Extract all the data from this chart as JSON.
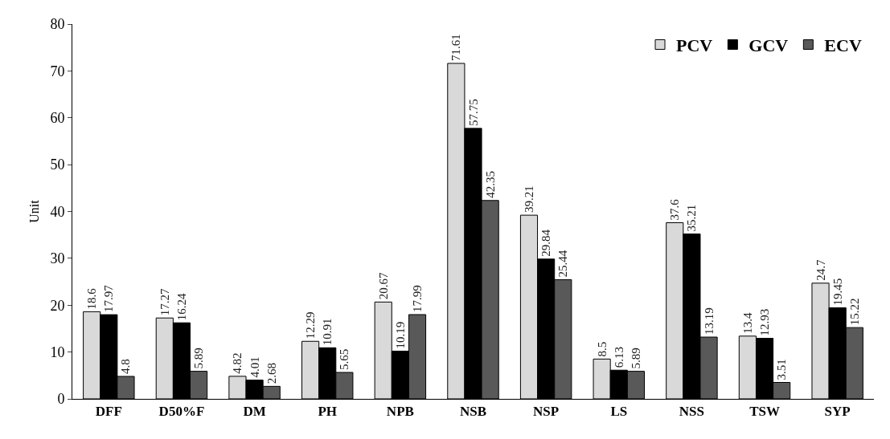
{
  "chart_data": {
    "type": "bar",
    "ylabel": "Unit",
    "categories": [
      "DFF",
      "D50%F",
      "DM",
      "PH",
      "NPB",
      "NSB",
      "NSP",
      "LS",
      "NSS",
      "TSW",
      "SYP"
    ],
    "series": [
      {
        "name": "PCV",
        "color": "#d9d9d9",
        "values": [
          18.6,
          17.27,
          4.82,
          12.29,
          20.67,
          71.61,
          39.21,
          8.5,
          37.6,
          13.4,
          24.7
        ]
      },
      {
        "name": "GCV",
        "color": "#000000",
        "values": [
          17.97,
          16.24,
          4.01,
          10.91,
          10.19,
          57.75,
          29.84,
          6.13,
          35.21,
          12.93,
          19.45
        ]
      },
      {
        "name": "ECV",
        "color": "#595959",
        "values": [
          4.8,
          5.89,
          2.68,
          5.65,
          17.99,
          42.35,
          25.44,
          5.89,
          13.19,
          3.51,
          15.22
        ]
      }
    ],
    "ylim": [
      0,
      80
    ],
    "yticks": [
      0,
      10,
      20,
      30,
      40,
      50,
      60,
      70,
      80
    ],
    "grid": false,
    "legend": "top right",
    "data_labels": true
  }
}
